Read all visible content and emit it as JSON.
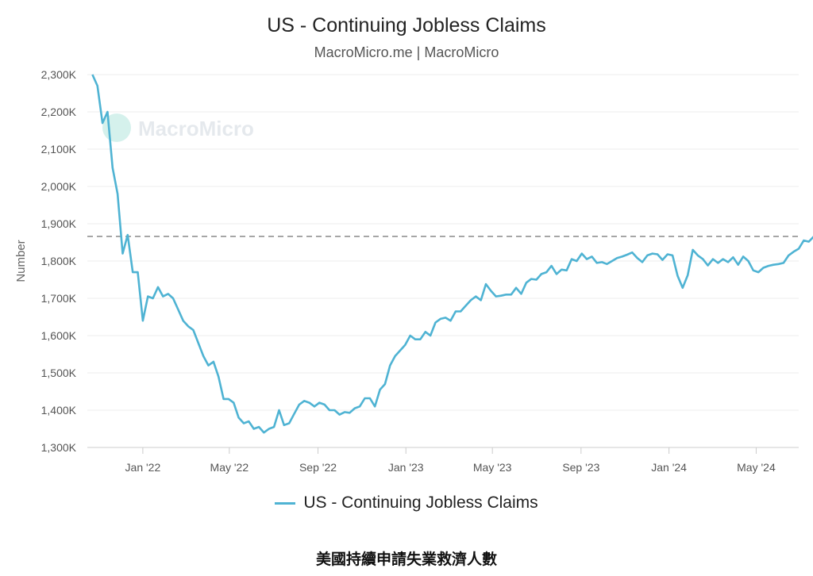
{
  "chart_data": {
    "type": "line",
    "title": "US - Continuing Jobless Claims",
    "subtitle": "MacroMicro.me | MacroMicro",
    "ylabel": "Number",
    "watermark": "MacroMicro",
    "caption": "美國持續申請失業救濟人數",
    "ylim": [
      1300000,
      2300000
    ],
    "yticks": [
      {
        "value": 1300000,
        "label": "1,300K"
      },
      {
        "value": 1400000,
        "label": "1,400K"
      },
      {
        "value": 1500000,
        "label": "1,500K"
      },
      {
        "value": 1600000,
        "label": "1,600K"
      },
      {
        "value": 1700000,
        "label": "1,700K"
      },
      {
        "value": 1800000,
        "label": "1,800K"
      },
      {
        "value": 1900000,
        "label": "1,900K"
      },
      {
        "value": 2000000,
        "label": "2,000K"
      },
      {
        "value": 2100000,
        "label": "2,100K"
      },
      {
        "value": 2200000,
        "label": "2,200K"
      },
      {
        "value": 2300000,
        "label": "2,300K"
      }
    ],
    "xlim": [
      "2021-10-16",
      "2024-06-29"
    ],
    "xticks": [
      {
        "date": "2022-01-01",
        "label": "Jan '22"
      },
      {
        "date": "2022-05-01",
        "label": "May '22"
      },
      {
        "date": "2022-09-01",
        "label": "Sep '22"
      },
      {
        "date": "2023-01-01",
        "label": "Jan '23"
      },
      {
        "date": "2023-05-01",
        "label": "May '23"
      },
      {
        "date": "2023-09-01",
        "label": "Sep '23"
      },
      {
        "date": "2024-01-01",
        "label": "Jan '24"
      },
      {
        "date": "2024-05-01",
        "label": "May '24"
      }
    ],
    "reference_line": {
      "value": 1866000,
      "style": "dashed"
    },
    "grid": true,
    "legend_position": "bottom",
    "series": [
      {
        "name": "US - Continuing Jobless Claims",
        "color": "#4fb3d3",
        "points": [
          [
            "2021-10-23",
            2300000
          ],
          [
            "2021-10-30",
            2270000
          ],
          [
            "2021-11-06",
            2170000
          ],
          [
            "2021-11-13",
            2200000
          ],
          [
            "2021-11-20",
            2050000
          ],
          [
            "2021-11-27",
            1980000
          ],
          [
            "2021-12-04",
            1820000
          ],
          [
            "2021-12-11",
            1870000
          ],
          [
            "2021-12-18",
            1770000
          ],
          [
            "2021-12-25",
            1770000
          ],
          [
            "2022-01-01",
            1640000
          ],
          [
            "2022-01-08",
            1705000
          ],
          [
            "2022-01-15",
            1700000
          ],
          [
            "2022-01-22",
            1730000
          ],
          [
            "2022-01-29",
            1705000
          ],
          [
            "2022-02-05",
            1712000
          ],
          [
            "2022-02-12",
            1700000
          ],
          [
            "2022-02-19",
            1670000
          ],
          [
            "2022-02-26",
            1640000
          ],
          [
            "2022-03-05",
            1625000
          ],
          [
            "2022-03-12",
            1615000
          ],
          [
            "2022-03-19",
            1580000
          ],
          [
            "2022-03-26",
            1545000
          ],
          [
            "2022-04-02",
            1520000
          ],
          [
            "2022-04-09",
            1530000
          ],
          [
            "2022-04-16",
            1490000
          ],
          [
            "2022-04-23",
            1430000
          ],
          [
            "2022-04-30",
            1430000
          ],
          [
            "2022-05-07",
            1420000
          ],
          [
            "2022-05-14",
            1380000
          ],
          [
            "2022-05-21",
            1365000
          ],
          [
            "2022-05-28",
            1370000
          ],
          [
            "2022-06-04",
            1350000
          ],
          [
            "2022-06-11",
            1355000
          ],
          [
            "2022-06-18",
            1340000
          ],
          [
            "2022-06-25",
            1350000
          ],
          [
            "2022-07-02",
            1355000
          ],
          [
            "2022-07-09",
            1400000
          ],
          [
            "2022-07-16",
            1360000
          ],
          [
            "2022-07-23",
            1365000
          ],
          [
            "2022-07-30",
            1390000
          ],
          [
            "2022-08-06",
            1415000
          ],
          [
            "2022-08-13",
            1425000
          ],
          [
            "2022-08-20",
            1420000
          ],
          [
            "2022-08-27",
            1410000
          ],
          [
            "2022-09-03",
            1420000
          ],
          [
            "2022-09-10",
            1415000
          ],
          [
            "2022-09-17",
            1400000
          ],
          [
            "2022-09-24",
            1400000
          ],
          [
            "2022-10-01",
            1388000
          ],
          [
            "2022-10-08",
            1395000
          ],
          [
            "2022-10-15",
            1393000
          ],
          [
            "2022-10-22",
            1405000
          ],
          [
            "2022-10-29",
            1410000
          ],
          [
            "2022-11-05",
            1432000
          ],
          [
            "2022-11-12",
            1432000
          ],
          [
            "2022-11-19",
            1410000
          ],
          [
            "2022-11-26",
            1455000
          ],
          [
            "2022-12-03",
            1470000
          ],
          [
            "2022-12-10",
            1520000
          ],
          [
            "2022-12-17",
            1545000
          ],
          [
            "2022-12-24",
            1560000
          ],
          [
            "2022-12-31",
            1575000
          ],
          [
            "2023-01-07",
            1600000
          ],
          [
            "2023-01-14",
            1590000
          ],
          [
            "2023-01-21",
            1590000
          ],
          [
            "2023-01-28",
            1610000
          ],
          [
            "2023-02-04",
            1600000
          ],
          [
            "2023-02-11",
            1635000
          ],
          [
            "2023-02-18",
            1645000
          ],
          [
            "2023-02-25",
            1648000
          ],
          [
            "2023-03-04",
            1640000
          ],
          [
            "2023-03-11",
            1665000
          ],
          [
            "2023-03-18",
            1665000
          ],
          [
            "2023-03-25",
            1680000
          ],
          [
            "2023-04-01",
            1695000
          ],
          [
            "2023-04-08",
            1705000
          ],
          [
            "2023-04-15",
            1695000
          ],
          [
            "2023-04-22",
            1738000
          ],
          [
            "2023-04-29",
            1720000
          ],
          [
            "2023-05-06",
            1705000
          ],
          [
            "2023-05-13",
            1707000
          ],
          [
            "2023-05-20",
            1710000
          ],
          [
            "2023-05-27",
            1710000
          ],
          [
            "2023-06-03",
            1728000
          ],
          [
            "2023-06-10",
            1712000
          ],
          [
            "2023-06-17",
            1742000
          ],
          [
            "2023-06-24",
            1752000
          ],
          [
            "2023-07-01",
            1750000
          ],
          [
            "2023-07-08",
            1765000
          ],
          [
            "2023-07-15",
            1770000
          ],
          [
            "2023-07-22",
            1787000
          ],
          [
            "2023-07-29",
            1765000
          ],
          [
            "2023-08-05",
            1777000
          ],
          [
            "2023-08-12",
            1775000
          ],
          [
            "2023-08-19",
            1805000
          ],
          [
            "2023-08-26",
            1800000
          ],
          [
            "2023-09-02",
            1820000
          ],
          [
            "2023-09-09",
            1805000
          ],
          [
            "2023-09-16",
            1812000
          ],
          [
            "2023-09-23",
            1795000
          ],
          [
            "2023-09-30",
            1797000
          ],
          [
            "2023-10-07",
            1792000
          ],
          [
            "2023-10-14",
            1800000
          ],
          [
            "2023-10-21",
            1808000
          ],
          [
            "2023-10-28",
            1812000
          ],
          [
            "2023-11-04",
            1817000
          ],
          [
            "2023-11-11",
            1823000
          ],
          [
            "2023-11-18",
            1808000
          ],
          [
            "2023-11-25",
            1797000
          ],
          [
            "2023-12-02",
            1815000
          ],
          [
            "2023-12-09",
            1820000
          ],
          [
            "2023-12-16",
            1818000
          ],
          [
            "2023-12-23",
            1803000
          ],
          [
            "2023-12-30",
            1818000
          ],
          [
            "2024-01-06",
            1815000
          ],
          [
            "2024-01-13",
            1760000
          ],
          [
            "2024-01-20",
            1728000
          ],
          [
            "2024-01-27",
            1762000
          ],
          [
            "2024-02-03",
            1830000
          ],
          [
            "2024-02-10",
            1815000
          ],
          [
            "2024-02-17",
            1805000
          ],
          [
            "2024-02-24",
            1788000
          ],
          [
            "2024-03-02",
            1805000
          ],
          [
            "2024-03-09",
            1795000
          ],
          [
            "2024-03-16",
            1805000
          ],
          [
            "2024-03-23",
            1797000
          ],
          [
            "2024-03-30",
            1810000
          ],
          [
            "2024-04-06",
            1790000
          ],
          [
            "2024-04-13",
            1812000
          ],
          [
            "2024-04-20",
            1800000
          ],
          [
            "2024-04-27",
            1775000
          ],
          [
            "2024-05-04",
            1770000
          ],
          [
            "2024-05-11",
            1782000
          ],
          [
            "2024-05-18",
            1787000
          ],
          [
            "2024-05-25",
            1790000
          ],
          [
            "2024-06-01",
            1792000
          ],
          [
            "2024-06-08",
            1795000
          ],
          [
            "2024-06-15",
            1815000
          ],
          [
            "2024-06-22",
            1825000
          ],
          [
            "2024-06-29",
            1833000
          ],
          [
            "2024-07-06",
            1855000
          ],
          [
            "2024-07-13",
            1852000
          ],
          [
            "2024-07-20",
            1866000
          ]
        ]
      }
    ]
  }
}
